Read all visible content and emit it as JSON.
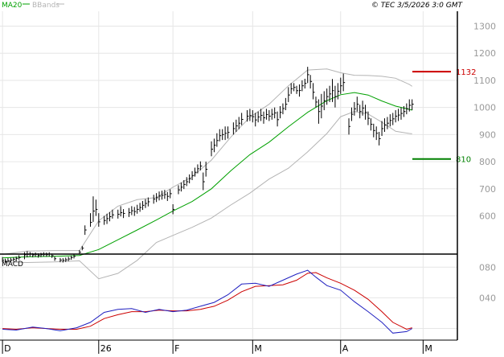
{
  "header": {
    "ma_label": "MA20",
    "bb_label": "BBands",
    "timestamp": "© TEC 3/5/2026 3:0 GMT"
  },
  "colors": {
    "ma": "#00a000",
    "bbands": "#b4b4b4",
    "price": "#000000",
    "resistance": "#cc0000",
    "support": "#008000",
    "macd": "#2020c0",
    "signal": "#cc0000",
    "grid": "#e6e6e6",
    "axis_text": "#9a9a9a"
  },
  "chart_data": [
    {
      "type": "ohlc",
      "name": "price",
      "ylim": [
        465,
        1355
      ],
      "yticks": [
        "600",
        "700",
        "800",
        "900",
        "1000",
        "1100",
        "1200",
        "1300"
      ],
      "xticks": [
        "D",
        "26",
        "F",
        "M",
        "A",
        "M"
      ],
      "xtick_days": [
        0,
        35,
        62,
        91,
        123,
        153
      ],
      "levels": [
        {
          "name": "resistance",
          "value": 1132,
          "label": "1132"
        },
        {
          "name": "support",
          "value": 810,
          "label": "810"
        }
      ],
      "bars": [
        [
          0,
          1,
          430,
          448,
          437
        ],
        [
          1,
          1,
          427,
          442,
          433
        ],
        [
          2,
          1,
          429,
          444,
          434
        ],
        [
          3,
          1,
          430,
          445,
          437
        ],
        [
          4,
          1,
          432,
          447,
          440
        ],
        [
          5,
          1,
          434,
          450,
          443
        ],
        [
          6,
          1,
          438,
          455,
          446
        ],
        [
          8,
          1,
          440,
          466,
          456
        ],
        [
          9,
          1,
          447,
          470,
          458
        ],
        [
          10,
          1,
          450,
          467,
          460
        ],
        [
          11,
          1,
          447,
          463,
          456
        ],
        [
          12,
          1,
          449,
          465,
          458
        ],
        [
          13,
          1,
          446,
          462,
          454
        ],
        [
          14,
          1,
          448,
          464,
          457
        ],
        [
          15,
          1,
          450,
          466,
          458
        ],
        [
          16,
          1,
          449,
          465,
          457
        ],
        [
          17,
          1,
          450,
          466,
          459
        ],
        [
          18,
          1,
          445,
          461,
          453
        ],
        [
          19,
          1,
          434,
          450,
          442
        ],
        [
          21,
          1,
          429,
          445,
          437
        ],
        [
          22,
          1,
          428,
          444,
          436
        ],
        [
          23,
          1,
          430,
          446,
          438
        ],
        [
          24,
          1,
          433,
          449,
          441
        ],
        [
          25,
          1,
          438,
          454,
          446
        ],
        [
          26,
          1,
          443,
          459,
          451
        ],
        [
          28,
          1,
          458,
          474,
          466
        ],
        [
          29,
          1,
          473,
          489,
          481
        ],
        [
          30,
          1,
          530,
          565,
          548
        ],
        [
          32,
          1,
          560,
          610,
          576
        ],
        [
          33,
          1,
          578,
          672,
          618
        ],
        [
          34,
          1,
          600,
          660,
          624
        ],
        [
          35,
          1,
          560,
          610,
          578
        ],
        [
          37,
          1,
          567,
          600,
          583
        ],
        [
          38,
          1,
          570,
          608,
          590
        ],
        [
          39,
          1,
          580,
          614,
          597
        ],
        [
          40,
          1,
          590,
          623,
          604
        ],
        [
          42,
          1,
          590,
          623,
          606
        ],
        [
          43,
          1,
          598,
          636,
          612
        ],
        [
          44,
          1,
          592,
          625,
          609
        ],
        [
          46,
          1,
          596,
          629,
          612
        ],
        [
          47,
          1,
          603,
          636,
          619
        ],
        [
          48,
          1,
          600,
          633,
          616
        ],
        [
          49,
          1,
          608,
          641,
          624
        ],
        [
          50,
          1,
          615,
          648,
          631
        ],
        [
          51,
          1,
          622,
          655,
          639
        ],
        [
          52,
          1,
          629,
          662,
          646
        ],
        [
          53,
          1,
          635,
          668,
          652
        ],
        [
          55,
          1,
          645,
          678,
          662
        ],
        [
          56,
          1,
          651,
          684,
          667
        ],
        [
          57,
          1,
          657,
          690,
          673
        ],
        [
          58,
          1,
          660,
          693,
          676
        ],
        [
          59,
          1,
          663,
          696,
          679
        ],
        [
          60,
          1,
          655,
          688,
          672
        ],
        [
          61,
          1,
          665,
          698,
          682
        ],
        [
          62,
          1,
          606,
          643,
          624
        ],
        [
          64,
          1,
          680,
          713,
          696
        ],
        [
          65,
          1,
          690,
          723,
          706
        ],
        [
          66,
          1,
          699,
          732,
          716
        ],
        [
          67,
          1,
          710,
          743,
          726
        ],
        [
          68,
          1,
          720,
          753,
          737
        ],
        [
          69,
          1,
          732,
          765,
          749
        ],
        [
          70,
          1,
          745,
          778,
          761
        ],
        [
          71,
          1,
          757,
          790,
          774
        ],
        [
          72,
          1,
          768,
          801,
          784
        ],
        [
          73,
          1,
          695,
          760,
          726
        ],
        [
          74,
          1,
          745,
          800,
          772
        ],
        [
          76,
          1,
          820,
          875,
          846
        ],
        [
          77,
          1,
          835,
          885,
          861
        ],
        [
          78,
          1,
          855,
          905,
          878
        ],
        [
          79,
          1,
          875,
          920,
          896
        ],
        [
          80,
          1,
          880,
          920,
          900
        ],
        [
          81,
          1,
          880,
          930,
          905
        ],
        [
          82,
          1,
          885,
          930,
          908
        ],
        [
          84,
          1,
          900,
          945,
          922
        ],
        [
          85,
          1,
          910,
          955,
          932
        ],
        [
          86,
          1,
          920,
          965,
          942
        ],
        [
          87,
          1,
          935,
          980,
          956
        ],
        [
          89,
          1,
          948,
          990,
          968
        ],
        [
          90,
          1,
          950,
          995,
          970
        ],
        [
          91,
          1,
          945,
          990,
          966
        ],
        [
          92,
          1,
          930,
          980,
          954
        ],
        [
          93,
          1,
          945,
          985,
          965
        ],
        [
          94,
          1,
          950,
          995,
          971
        ],
        [
          95,
          1,
          940,
          985,
          962
        ],
        [
          96,
          1,
          955,
          995,
          974
        ],
        [
          97,
          1,
          950,
          990,
          968
        ],
        [
          98,
          1,
          955,
          995,
          975
        ],
        [
          99,
          1,
          960,
          1000,
          980
        ],
        [
          100,
          1,
          930,
          985,
          955
        ],
        [
          101,
          1,
          960,
          1005,
          982
        ],
        [
          102,
          1,
          975,
          1015,
          996
        ],
        [
          103,
          1,
          990,
          1035,
          1012
        ],
        [
          104,
          1,
          1020,
          1075,
          1046
        ],
        [
          105,
          1,
          1050,
          1090,
          1069
        ],
        [
          106,
          1,
          1060,
          1090,
          1074
        ],
        [
          107,
          1,
          1050,
          1080,
          1062
        ],
        [
          108,
          1,
          1040,
          1085,
          1063
        ],
        [
          109,
          1,
          1060,
          1100,
          1080
        ],
        [
          110,
          1,
          1070,
          1106,
          1089
        ],
        [
          111,
          1,
          1090,
          1150,
          1121
        ],
        [
          112,
          1,
          1070,
          1120,
          1096
        ],
        [
          113,
          1,
          1030,
          1090,
          1056
        ],
        [
          114,
          1,
          1000,
          1040,
          1020
        ],
        [
          115,
          1,
          940,
          1030,
          985
        ],
        [
          116,
          1,
          960,
          1050,
          1005
        ],
        [
          117,
          1,
          990,
          1060,
          1025
        ],
        [
          118,
          1,
          1010,
          1070,
          1040
        ],
        [
          119,
          1,
          1020,
          1080,
          1050
        ],
        [
          120,
          1,
          1020,
          1105,
          1062
        ],
        [
          121,
          1,
          1000,
          1080,
          1040
        ],
        [
          122,
          1,
          1030,
          1090,
          1060
        ],
        [
          123,
          1,
          1050,
          1110,
          1080
        ],
        [
          124,
          1,
          1060,
          1125,
          1092
        ],
        [
          126,
          1,
          900,
          960,
          930
        ],
        [
          127,
          1,
          950,
          1000,
          975
        ],
        [
          128,
          1,
          970,
          1020,
          995
        ],
        [
          129,
          1,
          985,
          1040,
          1012
        ],
        [
          130,
          1,
          960,
          1010,
          985
        ],
        [
          131,
          1,
          970,
          1025,
          998
        ],
        [
          132,
          1,
          955,
          1010,
          982
        ],
        [
          133,
          1,
          935,
          985,
          960
        ],
        [
          134,
          1,
          915,
          960,
          938
        ],
        [
          135,
          1,
          890,
          940,
          915
        ],
        [
          136,
          1,
          880,
          930,
          905
        ],
        [
          137,
          1,
          860,
          910,
          885
        ],
        [
          138,
          1,
          895,
          950,
          922
        ],
        [
          139,
          1,
          910,
          960,
          935
        ],
        [
          140,
          1,
          920,
          965,
          942
        ],
        [
          141,
          1,
          930,
          975,
          952
        ],
        [
          142,
          1,
          935,
          980,
          958
        ],
        [
          143,
          1,
          945,
          990,
          968
        ],
        [
          144,
          1,
          950,
          995,
          972
        ],
        [
          145,
          1,
          955,
          1000,
          978
        ],
        [
          146,
          1,
          965,
          1005,
          985
        ],
        [
          147,
          1,
          975,
          1015,
          995
        ],
        [
          148,
          1,
          985,
          1030,
          1008
        ],
        [
          149,
          1,
          990,
          1030,
          1012
        ]
      ]
    }
  ],
  "ma20": [
    [
      0,
      445
    ],
    [
      9,
      449
    ],
    [
      19,
      451
    ],
    [
      28,
      454
    ],
    [
      35,
      476
    ],
    [
      42,
      512
    ],
    [
      49,
      548
    ],
    [
      56,
      585
    ],
    [
      62,
      618
    ],
    [
      69,
      653
    ],
    [
      76,
      700
    ],
    [
      83,
      766
    ],
    [
      90,
      826
    ],
    [
      97,
      872
    ],
    [
      104,
      929
    ],
    [
      111,
      982
    ],
    [
      118,
      1025
    ],
    [
      123,
      1047
    ],
    [
      128,
      1055
    ],
    [
      133,
      1046
    ],
    [
      138,
      1024
    ],
    [
      143,
      1005
    ],
    [
      148,
      993
    ],
    [
      149,
      990
    ]
  ],
  "bb_upper": [
    [
      0,
      458
    ],
    [
      9,
      470
    ],
    [
      19,
      472
    ],
    [
      28,
      472
    ],
    [
      35,
      582
    ],
    [
      42,
      636
    ],
    [
      49,
      660
    ],
    [
      56,
      668
    ],
    [
      62,
      706
    ],
    [
      69,
      744
    ],
    [
      76,
      806
    ],
    [
      83,
      890
    ],
    [
      90,
      964
    ],
    [
      97,
      1012
    ],
    [
      104,
      1080
    ],
    [
      111,
      1138
    ],
    [
      118,
      1142
    ],
    [
      123,
      1128
    ],
    [
      128,
      1119
    ],
    [
      133,
      1118
    ],
    [
      138,
      1115
    ],
    [
      143,
      1108
    ],
    [
      148,
      1085
    ],
    [
      149,
      1078
    ]
  ],
  "bb_lower": [
    [
      0,
      430
    ],
    [
      9,
      428
    ],
    [
      19,
      430
    ],
    [
      28,
      434
    ],
    [
      35,
      368
    ],
    [
      42,
      388
    ],
    [
      49,
      436
    ],
    [
      56,
      502
    ],
    [
      62,
      528
    ],
    [
      69,
      558
    ],
    [
      76,
      592
    ],
    [
      83,
      640
    ],
    [
      90,
      684
    ],
    [
      97,
      736
    ],
    [
      104,
      776
    ],
    [
      111,
      836
    ],
    [
      118,
      904
    ],
    [
      123,
      966
    ],
    [
      128,
      985
    ],
    [
      133,
      976
    ],
    [
      138,
      946
    ],
    [
      143,
      912
    ],
    [
      148,
      904
    ],
    [
      149,
      903
    ]
  ],
  "macd": {
    "label": "MACD",
    "ylim": [
      -12,
      95
    ],
    "yticks": [
      "040",
      "080"
    ],
    "macd_line": [
      [
        0,
        -1
      ],
      [
        5,
        -2
      ],
      [
        11,
        2
      ],
      [
        16,
        0
      ],
      [
        21,
        -3
      ],
      [
        27,
        1
      ],
      [
        32,
        8
      ],
      [
        37,
        21
      ],
      [
        42,
        25
      ],
      [
        47,
        26
      ],
      [
        52,
        21
      ],
      [
        57,
        25
      ],
      [
        62,
        22
      ],
      [
        67,
        24
      ],
      [
        72,
        29
      ],
      [
        77,
        34
      ],
      [
        82,
        44
      ],
      [
        87,
        58
      ],
      [
        92,
        59
      ],
      [
        97,
        55
      ],
      [
        102,
        63
      ],
      [
        107,
        71
      ],
      [
        111,
        76
      ],
      [
        114,
        67
      ],
      [
        118,
        56
      ],
      [
        123,
        50
      ],
      [
        128,
        35
      ],
      [
        133,
        22
      ],
      [
        138,
        8
      ],
      [
        142,
        -6
      ],
      [
        147,
        -4
      ],
      [
        149,
        0
      ]
    ],
    "signal_line": [
      [
        0,
        0
      ],
      [
        5,
        -1
      ],
      [
        11,
        1
      ],
      [
        16,
        0
      ],
      [
        21,
        -1
      ],
      [
        27,
        -1
      ],
      [
        32,
        3
      ],
      [
        37,
        13
      ],
      [
        42,
        18
      ],
      [
        47,
        22
      ],
      [
        52,
        22
      ],
      [
        57,
        24
      ],
      [
        62,
        23
      ],
      [
        67,
        23
      ],
      [
        72,
        25
      ],
      [
        77,
        29
      ],
      [
        82,
        37
      ],
      [
        87,
        48
      ],
      [
        92,
        55
      ],
      [
        97,
        56
      ],
      [
        102,
        57
      ],
      [
        107,
        63
      ],
      [
        111,
        72
      ],
      [
        114,
        73
      ],
      [
        118,
        66
      ],
      [
        123,
        59
      ],
      [
        128,
        50
      ],
      [
        133,
        38
      ],
      [
        138,
        22
      ],
      [
        142,
        8
      ],
      [
        147,
        -1
      ],
      [
        149,
        1
      ]
    ]
  }
}
